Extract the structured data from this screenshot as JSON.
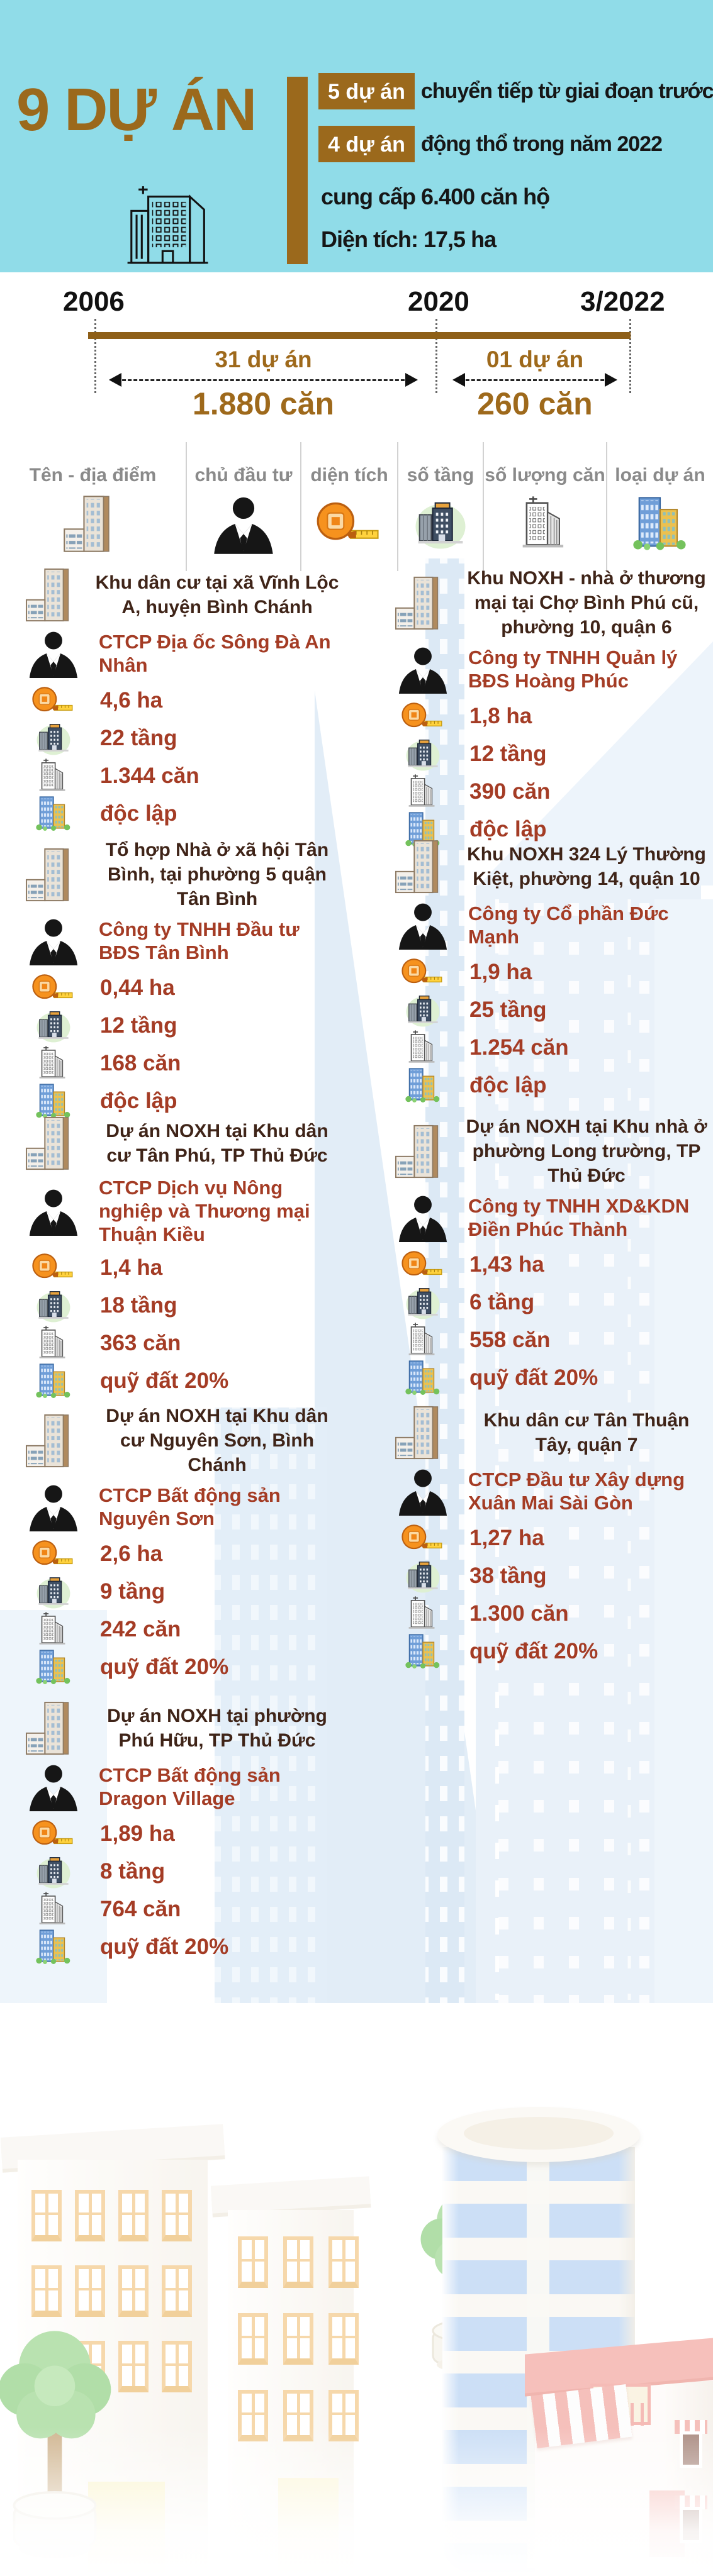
{
  "header": {
    "title": "9 DỰ ÁN",
    "line1_badge": "5 dự án",
    "line1_text": "chuyển tiếp từ giai đoạn trước",
    "line2_badge": "4 dự án",
    "line2_text": "động thổ trong năm 2022",
    "line3": "cung cấp 6.400 căn hộ",
    "line4": "Diện tích: 17,5 ha"
  },
  "timeline": {
    "year_start": "2006",
    "year_mid": "2020",
    "year_end": "3/2022",
    "segments": [
      {
        "projects": "31 dự án",
        "units": "1.880 căn"
      },
      {
        "projects": "01 dự án",
        "units": "260 căn"
      }
    ]
  },
  "legend": {
    "columns": [
      {
        "label": "Tên - địa điểm",
        "icon": "building-location-icon"
      },
      {
        "label": "chủ đầu tư",
        "icon": "investor-icon"
      },
      {
        "label": "diện tích",
        "icon": "tape-measure-icon"
      },
      {
        "label": "số tầng",
        "icon": "floors-icon"
      },
      {
        "label": "số lượng căn",
        "icon": "units-icon"
      },
      {
        "label": "loại dự án",
        "icon": "project-type-icon"
      }
    ]
  },
  "projects": [
    {
      "name": "Khu dân cư tại xã Vĩnh Lộc A, huyện Bình Chánh",
      "investor": "CTCP Địa ốc Sông Đà An Nhân",
      "area": "4,6 ha",
      "floors": "22 tầng",
      "units": "1.344 căn",
      "type": "độc lập"
    },
    {
      "name": "Khu NOXH - nhà ở thương mại tại Chợ Bình Phú cũ, phường 10, quận 6",
      "investor": "Công ty TNHH Quản lý BĐS Hoàng Phúc",
      "area": "1,8 ha",
      "floors": "12 tầng",
      "units": "390 căn",
      "type": "độc lập"
    },
    {
      "name": "Tổ hợp Nhà ở xã hội Tân Bình, tại phường 5 quận Tân Bình",
      "investor": "Công ty TNHH Đầu tư BĐS Tân Bình",
      "area": "0,44 ha",
      "floors": "12 tầng",
      "units": "168 căn",
      "type": "độc lập"
    },
    {
      "name": "Khu NOXH 324 Lý Thường Kiệt, phường 14, quận 10",
      "investor": "Công ty Cổ phần Đức Mạnh",
      "area": "1,9 ha",
      "floors": "25 tầng",
      "units": "1.254 căn",
      "type": "độc lập"
    },
    {
      "name": "Dự án NOXH tại Khu dân cư Tân Phú, TP Thủ Đức",
      "investor": "CTCP Dịch vụ Nông nghiệp và Thương mại Thuận Kiều",
      "area": "1,4 ha",
      "floors": "18 tầng",
      "units": "363 căn",
      "type": "quỹ đất 20%"
    },
    {
      "name": "Dự án NOXH tại Khu nhà ở phường Long trường, TP Thủ Đức",
      "investor": "Công ty TNHH XD&KDN Điền Phúc Thành",
      "area": "1,43 ha",
      "floors": "6 tầng",
      "units": "558 căn",
      "type": "quỹ đất 20%"
    },
    {
      "name": "Dự án NOXH tại Khu dân cư Nguyên Sơn, Bình Chánh",
      "investor": "CTCP Bất động sản Nguyên Sơn",
      "area": "2,6 ha",
      "floors": "9 tầng",
      "units": "242 căn",
      "type": "quỹ đất 20%"
    },
    {
      "name": "Khu dân cư Tân Thuận Tây, quận 7",
      "investor": "CTCP Đầu tư Xây dựng Xuân Mai Sài Gòn",
      "area": "1,27 ha",
      "floors": "38 tầng",
      "units": "1.300 căn",
      "type": "quỹ đất 20%"
    },
    {
      "name": "Dự án NOXH tại phường Phú Hữu, TP Thủ Đức",
      "investor": "CTCP Bất động sản Dragon Village",
      "area": "1,89 ha",
      "floors": "8 tầng",
      "units": "764 căn",
      "type": "quỹ đất 20%"
    }
  ],
  "colors": {
    "header_bg": "#90dce8",
    "brown_accent": "#9b691c",
    "value_text": "#a43c25",
    "name_text": "#3f2418",
    "legend_text": "#8a8a8a"
  }
}
